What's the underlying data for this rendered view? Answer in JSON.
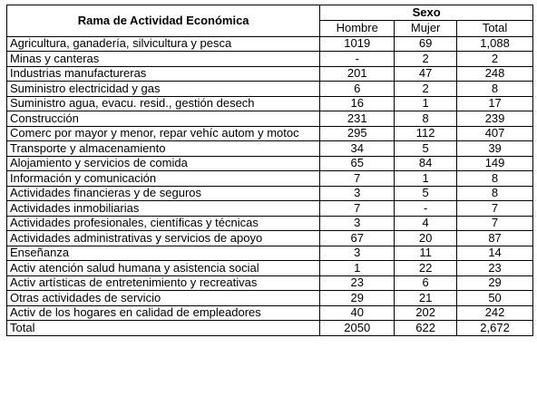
{
  "table": {
    "header": {
      "row_header": "Rama de Actividad Económica",
      "group": "Sexo",
      "columns": [
        "Hombre",
        "Mujer",
        "Total"
      ]
    },
    "rows": [
      [
        "Agricultura, ganadería, silvicultura y pesca",
        "1019",
        "69",
        "1,088"
      ],
      [
        "Minas y canteras",
        "-",
        "2",
        "2"
      ],
      [
        "Industrias manufactureras",
        "201",
        "47",
        "248"
      ],
      [
        "Suministro electricidad y gas",
        "6",
        "2",
        "8"
      ],
      [
        "Suministro agua, evacu. resid., gestión desech",
        "16",
        "1",
        "17"
      ],
      [
        "Construcción",
        "231",
        "8",
        "239"
      ],
      [
        "Comerc por mayor y menor, repar vehíc autom y motoc",
        "295",
        "112",
        "407"
      ],
      [
        "Transporte y almacenamiento",
        "34",
        "5",
        "39"
      ],
      [
        "Alojamiento y servicios de comida",
        "65",
        "84",
        "149"
      ],
      [
        "Información y comunicación",
        "7",
        "1",
        "8"
      ],
      [
        "Actividades financieras y de seguros",
        "3",
        "5",
        "8"
      ],
      [
        "Actividades inmobiliarias",
        "7",
        "-",
        "7"
      ],
      [
        "Actividades profesionales, científicas y técnicas",
        "3",
        "4",
        "7"
      ],
      [
        "Actividades administrativas y servicios de apoyo",
        "67",
        "20",
        "87"
      ],
      [
        "Enseñanza",
        "3",
        "11",
        "14"
      ],
      [
        "Activ atención salud humana y asistencia social",
        "1",
        "22",
        "23"
      ],
      [
        "Activ artísticas de entretenimiento y recreativas",
        "23",
        "6",
        "29"
      ],
      [
        "Otras actividades de servicio",
        "29",
        "21",
        "50"
      ],
      [
        "Activ de los hogares en calidad de empleadores",
        "40",
        "202",
        "242"
      ],
      [
        "Total",
        "2050",
        "622",
        "2,672"
      ]
    ]
  }
}
